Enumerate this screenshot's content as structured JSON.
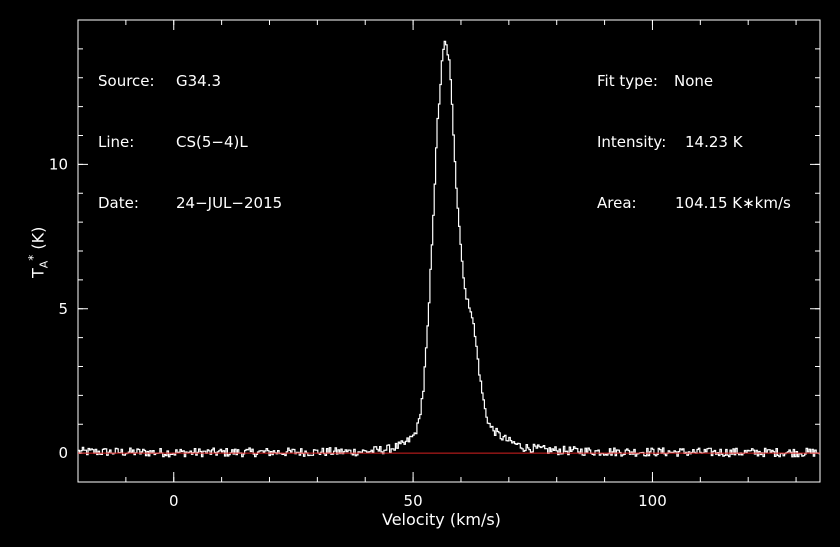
{
  "info_left": [
    {
      "label": "Source:",
      "value": "G34.3"
    },
    {
      "label": "Line:",
      "value": "CS(5−4)L"
    },
    {
      "label": "Date:",
      "value": "24−JUL−2015"
    }
  ],
  "info_right": [
    {
      "label": "Fit type:",
      "value": "None"
    },
    {
      "label": "Intensity:",
      "value": "14.23 K"
    },
    {
      "label": "Area:",
      "value": "104.15 K∗km/s"
    }
  ],
  "chart_data": {
    "type": "line",
    "title": "",
    "xlabel": "Velocity (km/s)",
    "ylabel": "T_A^* (K)",
    "xlim": [
      -20,
      135
    ],
    "ylim": [
      -1,
      15
    ],
    "xticks": [
      0,
      50,
      100
    ],
    "yticks": [
      0,
      5,
      10
    ],
    "grid": false,
    "series": [
      {
        "kind": "steps",
        "color": "#ffffff",
        "x": [
          -20,
          0,
          20,
          40,
          45,
          48,
          50,
          51,
          52,
          53,
          54,
          55,
          56,
          56.5,
          57,
          57.5,
          58,
          59,
          60,
          61,
          62,
          63,
          64,
          65,
          66,
          68,
          70,
          73,
          78,
          90,
          110,
          135
        ],
        "y": [
          0.05,
          0.02,
          0.03,
          0.05,
          0.15,
          0.3,
          0.6,
          1.0,
          2.2,
          4.5,
          8.0,
          11.5,
          13.7,
          14.2,
          14.0,
          13.4,
          12.0,
          9.0,
          6.8,
          5.3,
          5.0,
          3.8,
          2.4,
          1.4,
          0.9,
          0.6,
          0.4,
          0.2,
          0.1,
          0.05,
          0.03,
          0.02
        ]
      },
      {
        "kind": "baseline",
        "color": "#d62020",
        "x": [
          -20,
          135
        ],
        "y": [
          0,
          0
        ]
      }
    ]
  }
}
